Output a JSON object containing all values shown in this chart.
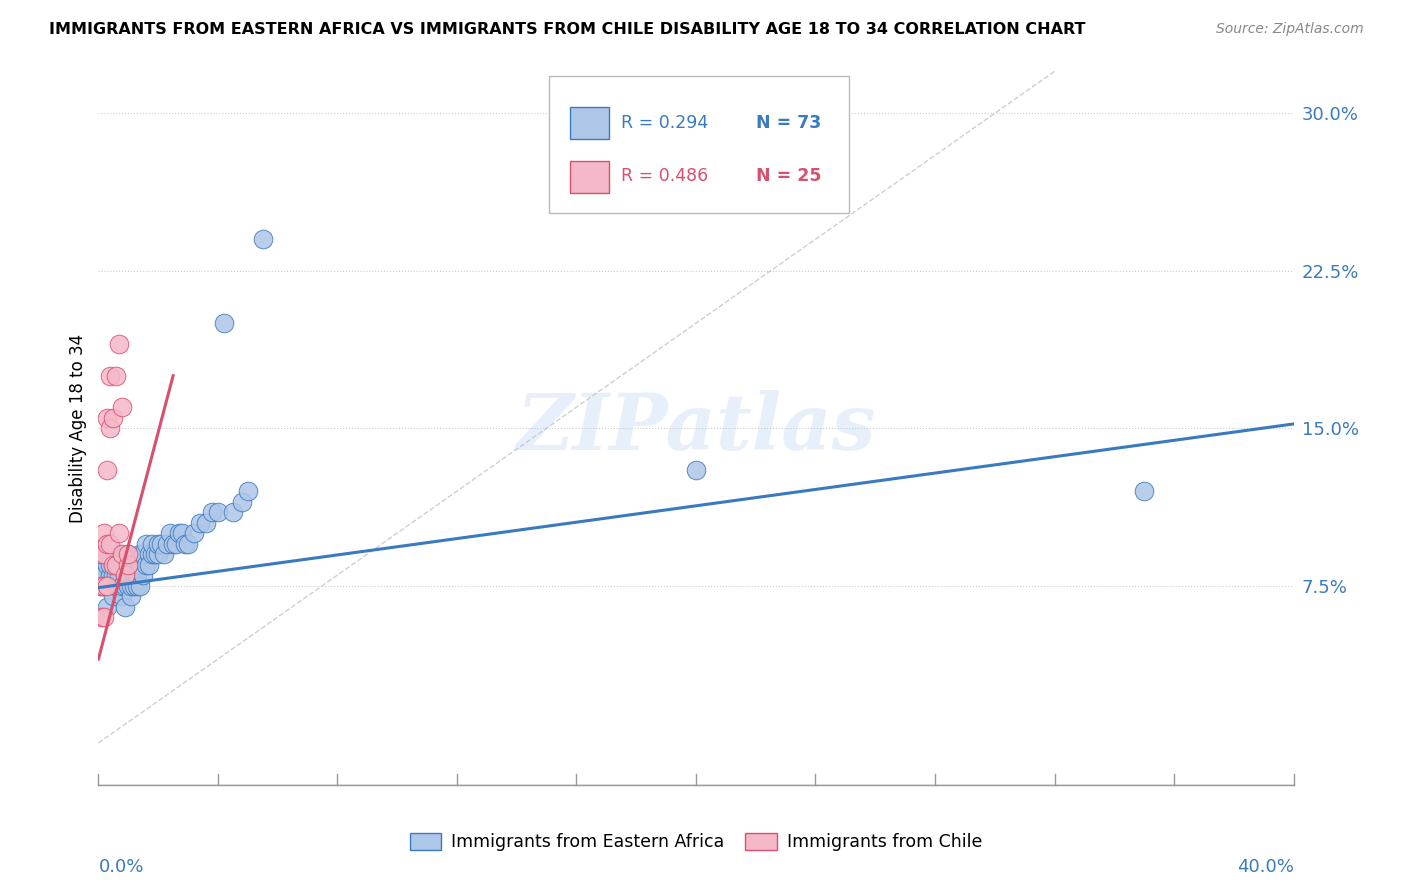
{
  "title": "IMMIGRANTS FROM EASTERN AFRICA VS IMMIGRANTS FROM CHILE DISABILITY AGE 18 TO 34 CORRELATION CHART",
  "source": "Source: ZipAtlas.com",
  "ylabel": "Disability Age 18 to 34",
  "yticks": [
    0.075,
    0.15,
    0.225,
    0.3
  ],
  "ytick_labels": [
    "7.5%",
    "15.0%",
    "22.5%",
    "30.0%"
  ],
  "xlim": [
    0.0,
    0.4
  ],
  "ylim": [
    -0.02,
    0.32
  ],
  "plot_ylim": [
    -0.02,
    0.32
  ],
  "legend_r1": "R = 0.294",
  "legend_n1": "N = 73",
  "legend_r2": "R = 0.486",
  "legend_n2": "N = 25",
  "blue_color": "#aec6e8",
  "pink_color": "#f5b8c8",
  "blue_line_color": "#3a7abf",
  "pink_line_color": "#d94f6e",
  "watermark": "ZIPatlas",
  "blue_scatter_x": [
    0.001,
    0.001,
    0.002,
    0.002,
    0.002,
    0.003,
    0.003,
    0.003,
    0.004,
    0.004,
    0.004,
    0.004,
    0.005,
    0.005,
    0.005,
    0.006,
    0.006,
    0.006,
    0.007,
    0.007,
    0.007,
    0.008,
    0.008,
    0.008,
    0.009,
    0.009,
    0.009,
    0.01,
    0.01,
    0.01,
    0.011,
    0.011,
    0.012,
    0.012,
    0.012,
    0.013,
    0.013,
    0.014,
    0.014,
    0.014,
    0.015,
    0.015,
    0.016,
    0.016,
    0.017,
    0.017,
    0.018,
    0.018,
    0.019,
    0.02,
    0.02,
    0.021,
    0.022,
    0.023,
    0.024,
    0.025,
    0.026,
    0.027,
    0.028,
    0.029,
    0.03,
    0.032,
    0.034,
    0.036,
    0.038,
    0.04,
    0.042,
    0.045,
    0.048,
    0.05,
    0.055,
    0.2,
    0.35
  ],
  "blue_scatter_y": [
    0.085,
    0.075,
    0.09,
    0.075,
    0.08,
    0.085,
    0.075,
    0.065,
    0.08,
    0.075,
    0.09,
    0.085,
    0.08,
    0.07,
    0.085,
    0.075,
    0.08,
    0.085,
    0.075,
    0.08,
    0.09,
    0.07,
    0.075,
    0.085,
    0.065,
    0.075,
    0.08,
    0.075,
    0.08,
    0.09,
    0.07,
    0.075,
    0.08,
    0.075,
    0.085,
    0.075,
    0.08,
    0.075,
    0.085,
    0.09,
    0.08,
    0.09,
    0.085,
    0.095,
    0.09,
    0.085,
    0.09,
    0.095,
    0.09,
    0.09,
    0.095,
    0.095,
    0.09,
    0.095,
    0.1,
    0.095,
    0.095,
    0.1,
    0.1,
    0.095,
    0.095,
    0.1,
    0.105,
    0.105,
    0.11,
    0.11,
    0.2,
    0.11,
    0.115,
    0.12,
    0.24,
    0.13,
    0.12
  ],
  "pink_scatter_x": [
    0.001,
    0.001,
    0.001,
    0.002,
    0.002,
    0.002,
    0.002,
    0.003,
    0.003,
    0.003,
    0.003,
    0.004,
    0.004,
    0.004,
    0.005,
    0.005,
    0.006,
    0.006,
    0.007,
    0.007,
    0.008,
    0.008,
    0.009,
    0.01,
    0.01
  ],
  "pink_scatter_y": [
    0.06,
    0.075,
    0.09,
    0.06,
    0.075,
    0.09,
    0.1,
    0.075,
    0.155,
    0.095,
    0.13,
    0.15,
    0.175,
    0.095,
    0.155,
    0.085,
    0.175,
    0.085,
    0.19,
    0.1,
    0.16,
    0.09,
    0.08,
    0.085,
    0.09
  ]
}
